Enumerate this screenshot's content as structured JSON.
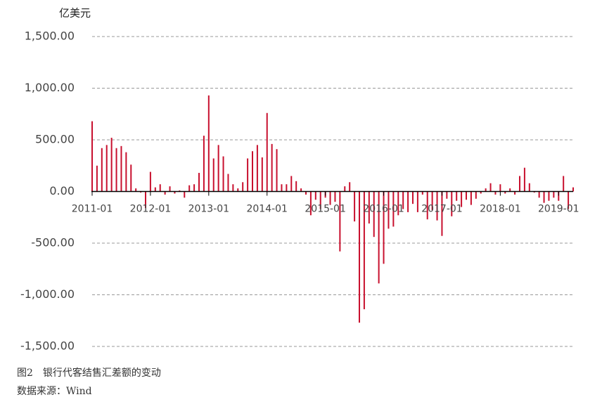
{
  "chart_data": {
    "type": "bar",
    "y_label": "亿美元",
    "caption": "图2　银行代客结售汇差额的变动",
    "source": "数据来源：Wind",
    "color": "#c8102e",
    "grid": true,
    "ylim": [
      -1500,
      1500
    ],
    "yticks": [
      {
        "value": -1500,
        "label": "-1,500.00"
      },
      {
        "value": -1000,
        "label": "-1,000.00"
      },
      {
        "value": -500,
        "label": "-500.00"
      },
      {
        "value": 0,
        "label": "0.00"
      },
      {
        "value": 500,
        "label": "500.00"
      },
      {
        "value": 1000,
        "label": "1,000.00"
      },
      {
        "value": 1500,
        "label": "1,500.00"
      }
    ],
    "categories": [
      "2011-01",
      null,
      null,
      null,
      null,
      null,
      null,
      null,
      null,
      null,
      null,
      null,
      "2012-01",
      null,
      null,
      null,
      null,
      null,
      null,
      null,
      null,
      null,
      null,
      null,
      "2013-01",
      null,
      null,
      null,
      null,
      null,
      null,
      null,
      null,
      null,
      null,
      null,
      "2014-01",
      null,
      null,
      null,
      null,
      null,
      null,
      null,
      null,
      null,
      null,
      null,
      "2015-01",
      null,
      null,
      null,
      null,
      null,
      null,
      null,
      null,
      null,
      null,
      null,
      "2016-01",
      null,
      null,
      null,
      null,
      null,
      null,
      null,
      null,
      null,
      null,
      null,
      "2017-01",
      null,
      null,
      null,
      null,
      null,
      null,
      null,
      null,
      null,
      null,
      null,
      "2018-01",
      null,
      null,
      null,
      null,
      null,
      null,
      null,
      null,
      null,
      null,
      null,
      "2019-01",
      null,
      null,
      null
    ],
    "values": [
      680,
      250,
      420,
      450,
      520,
      420,
      440,
      380,
      260,
      30,
      -10,
      -160,
      190,
      40,
      70,
      -30,
      50,
      -20,
      10,
      -60,
      60,
      70,
      180,
      540,
      930,
      320,
      450,
      340,
      170,
      70,
      30,
      90,
      320,
      390,
      450,
      330,
      760,
      460,
      410,
      70,
      70,
      150,
      100,
      30,
      -30,
      -230,
      -80,
      -170,
      -60,
      -130,
      -100,
      -580,
      50,
      90,
      -290,
      -1270,
      -1140,
      -310,
      -440,
      -890,
      -700,
      -360,
      -340,
      -230,
      -170,
      -200,
      -120,
      -200,
      -30,
      -270,
      -180,
      -280,
      -430,
      -70,
      -240,
      -90,
      -150,
      -80,
      -130,
      -70,
      -20,
      30,
      80,
      -30,
      70,
      -20,
      30,
      -30,
      150,
      230,
      80,
      -10,
      -60,
      -110,
      -90,
      -60,
      -90,
      150,
      -170,
      40
    ]
  }
}
